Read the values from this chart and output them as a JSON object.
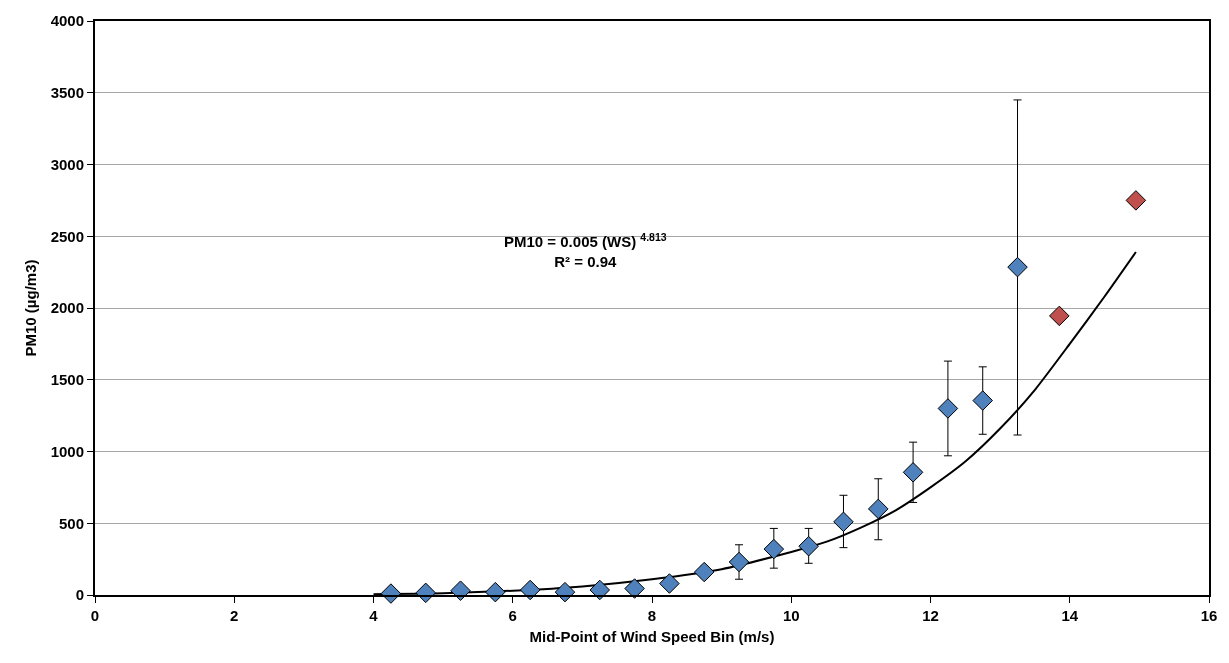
{
  "chart_data": {
    "type": "scatter",
    "xlabel": "Mid-Point of Wind Speed Bin (m/s)",
    "ylabel": "PM10 (µg/m3)",
    "xlim": [
      0,
      16
    ],
    "xticks": [
      0,
      2,
      4,
      6,
      8,
      10,
      12,
      14,
      16
    ],
    "ylim": [
      0,
      4000
    ],
    "yticks": [
      0,
      500,
      1000,
      1500,
      2000,
      2500,
      3000,
      3500,
      4000
    ],
    "grid": "y",
    "marker": "diamond",
    "annotations": [
      "PM10 = 0.005 (WS) $^{4.813}$\nR² = 0.94"
    ],
    "series": [
      {
        "color": "#4f81bd",
        "x": [
          4.25,
          4.75,
          5.25,
          5.75,
          6.25,
          6.75,
          7.25,
          7.75,
          8.25,
          8.75,
          9.25,
          9.75,
          10.25,
          10.75,
          11.25,
          11.75,
          12.25,
          12.75,
          13.25
        ],
        "values": [
          10,
          15,
          30,
          20,
          35,
          20,
          35,
          45,
          80,
          160,
          230,
          320,
          340,
          510,
          600,
          855,
          1300,
          1355,
          2285
        ],
        "errors": [
          null,
          null,
          null,
          null,
          null,
          null,
          null,
          null,
          null,
          [
            120,
            200
          ],
          [
            110,
            350
          ],
          [
            187,
            464
          ],
          [
            221,
            464
          ],
          [
            330,
            695
          ],
          [
            385,
            810
          ],
          [
            645,
            1065
          ],
          [
            970,
            1630
          ],
          [
            1120,
            1590
          ],
          [
            1115,
            3450
          ]
        ]
      },
      {
        "color": "#c0504d",
        "x": [
          13.85,
          14.95
        ],
        "values": [
          1945,
          2750
        ]
      },
      {
        "type": "line",
        "color": "#000000",
        "marker": "none",
        "line_style": "solid",
        "x": [
          4,
          5,
          6,
          7,
          8,
          9,
          10,
          10.5,
          11,
          11.5,
          12,
          12.5,
          13,
          13.5,
          14,
          14.5,
          14.95
        ],
        "values": [
          6,
          12,
          30,
          60,
          110,
          180,
          300,
          370,
          470,
          590,
          750,
          930,
          1160,
          1430,
          1750,
          2080,
          2390
        ]
      }
    ]
  }
}
